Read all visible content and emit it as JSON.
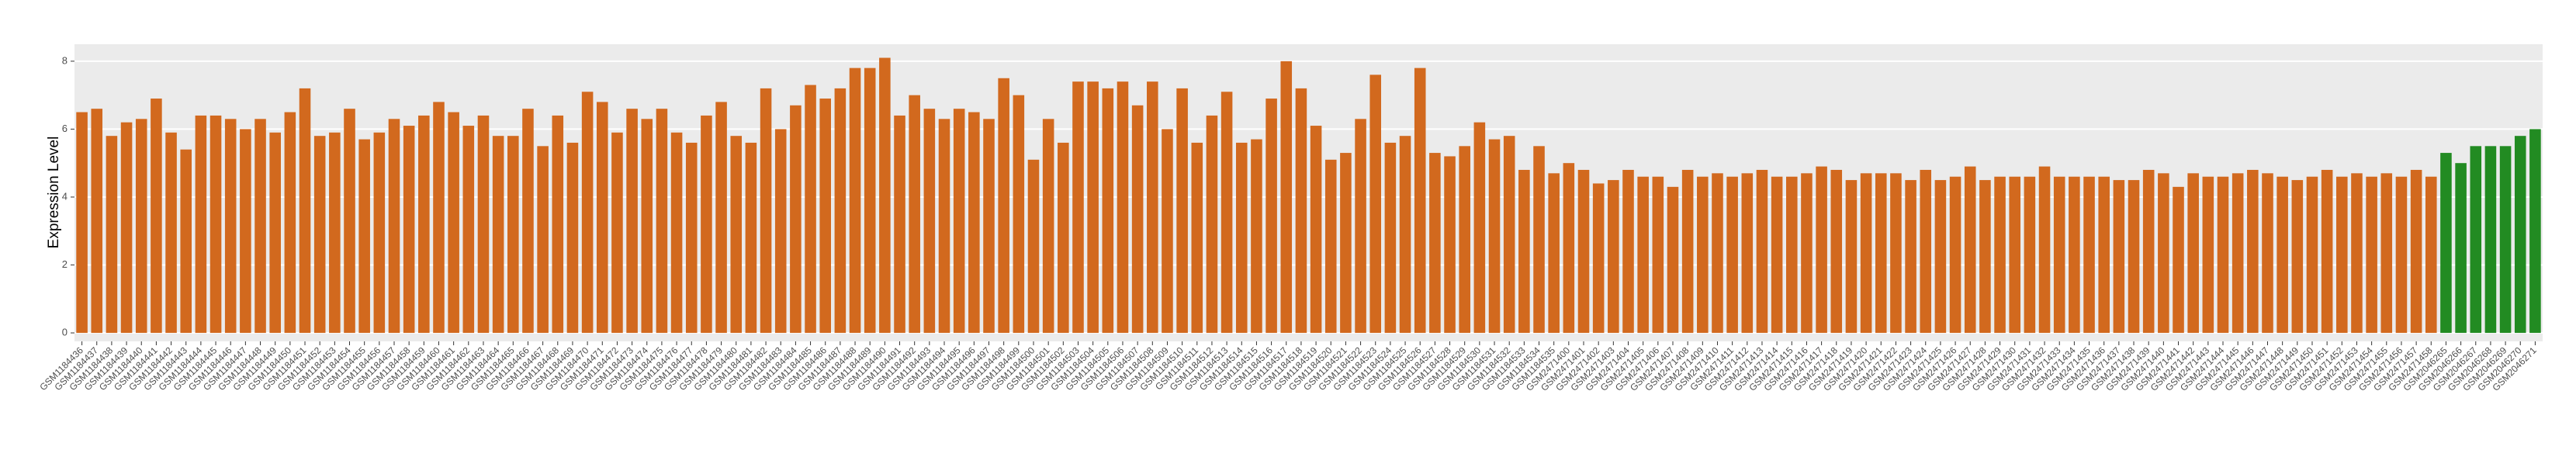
{
  "chart_data": {
    "type": "bar",
    "ylabel": "Expression Level",
    "ylim": [
      -0.25,
      8.5
    ],
    "yticks": [
      0,
      2,
      4,
      6,
      8
    ],
    "grid": true,
    "series": [
      {
        "color": "#d2691e",
        "categories": [
          "GSM1184436",
          "GSM1184437",
          "GSM1184438",
          "GSM1184439",
          "GSM1184440",
          "GSM1184441",
          "GSM1184442",
          "GSM1184443",
          "GSM1184444",
          "GSM1184445",
          "GSM1184446",
          "GSM1184447",
          "GSM1184448",
          "GSM1184449",
          "GSM1184450",
          "GSM1184451",
          "GSM1184452",
          "GSM1184453",
          "GSM1184454",
          "GSM1184455",
          "GSM1184456",
          "GSM1184457",
          "GSM1184458",
          "GSM1184459",
          "GSM1184460",
          "GSM1184461",
          "GSM1184462",
          "GSM1184463",
          "GSM1184464",
          "GSM1184465",
          "GSM1184466",
          "GSM1184467",
          "GSM1184468",
          "GSM1184469",
          "GSM1184470",
          "GSM1184471",
          "GSM1184472",
          "GSM1184473",
          "GSM1184474",
          "GSM1184475",
          "GSM1184476",
          "GSM1184477",
          "GSM1184478",
          "GSM1184479",
          "GSM1184480",
          "GSM1184481",
          "GSM1184482",
          "GSM1184483",
          "GSM1184484",
          "GSM1184485",
          "GSM1184486",
          "GSM1184487",
          "GSM1184488",
          "GSM1184489",
          "GSM1184490",
          "GSM1184491",
          "GSM1184492",
          "GSM1184493",
          "GSM1184494",
          "GSM1184495",
          "GSM1184496",
          "GSM1184497",
          "GSM1184498",
          "GSM1184499",
          "GSM1184500",
          "GSM1184501",
          "GSM1184502",
          "GSM1184503",
          "GSM1184504",
          "GSM1184505",
          "GSM1184506",
          "GSM1184507",
          "GSM1184508",
          "GSM1184509",
          "GSM1184510",
          "GSM1184511",
          "GSM1184512",
          "GSM1184513",
          "GSM1184514",
          "GSM1184515",
          "GSM1184516",
          "GSM1184517",
          "GSM1184518",
          "GSM1184519",
          "GSM1184520",
          "GSM1184521",
          "GSM1184522",
          "GSM1184523",
          "GSM1184524",
          "GSM1184525",
          "GSM1184526",
          "GSM1184527",
          "GSM1184528",
          "GSM1184529",
          "GSM1184530",
          "GSM1184531",
          "GSM1184532",
          "GSM1184533",
          "GSM1184534",
          "GSM1184535",
          "GSM2471400",
          "GSM2471401",
          "GSM2471402",
          "GSM2471403",
          "GSM2471404",
          "GSM2471405",
          "GSM2471406",
          "GSM2471407",
          "GSM2471408",
          "GSM2471409",
          "GSM2471410",
          "GSM2471411",
          "GSM2471412",
          "GSM2471413",
          "GSM2471414",
          "GSM2471415",
          "GSM2471416",
          "GSM2471417",
          "GSM2471418",
          "GSM2471419",
          "GSM2471420",
          "GSM2471421",
          "GSM2471422",
          "GSM2471423",
          "GSM2471424",
          "GSM2471425",
          "GSM2471426",
          "GSM2471427",
          "GSM2471428",
          "GSM2471429",
          "GSM2471430",
          "GSM2471431",
          "GSM2471432",
          "GSM2471433",
          "GSM2471434",
          "GSM2471435",
          "GSM2471436",
          "GSM2471437",
          "GSM2471438",
          "GSM2471439",
          "GSM2471440",
          "GSM2471441",
          "GSM2471442",
          "GSM2471443",
          "GSM2471444",
          "GSM2471445",
          "GSM2471446",
          "GSM2471447",
          "GSM2471448",
          "GSM2471449",
          "GSM2471450",
          "GSM2471451",
          "GSM2471452",
          "GSM2471453",
          "GSM2471454",
          "GSM2471455",
          "GSM2471456",
          "GSM2471457",
          "GSM2471458"
        ],
        "values": [
          6.5,
          6.6,
          5.8,
          6.2,
          6.3,
          6.9,
          5.9,
          5.4,
          6.4,
          6.4,
          6.3,
          6.0,
          6.3,
          5.9,
          6.5,
          7.2,
          5.8,
          5.9,
          6.6,
          5.7,
          5.9,
          6.3,
          6.1,
          6.4,
          6.8,
          6.5,
          6.1,
          6.4,
          5.8,
          5.8,
          6.6,
          5.5,
          6.4,
          5.6,
          7.1,
          6.8,
          5.9,
          6.6,
          6.3,
          6.6,
          5.9,
          5.6,
          6.4,
          6.8,
          5.8,
          5.6,
          7.2,
          6.0,
          6.7,
          7.3,
          6.9,
          7.2,
          7.8,
          7.8,
          8.1,
          6.4,
          7.0,
          6.6,
          6.3,
          6.6,
          6.5,
          6.3,
          7.5,
          7.0,
          5.1,
          6.3,
          5.6,
          7.4,
          7.4,
          7.2,
          7.4,
          6.7,
          7.4,
          6.0,
          7.2,
          5.6,
          6.4,
          7.1,
          5.6,
          5.7,
          6.9,
          8.0,
          7.2,
          6.1,
          5.1,
          5.3,
          6.3,
          7.6,
          5.6,
          5.8,
          7.8,
          5.3,
          5.2,
          5.5,
          6.2,
          5.7,
          5.8,
          4.8,
          5.5,
          4.7,
          5.0,
          4.8,
          4.4,
          4.5,
          4.8,
          4.6,
          4.6,
          4.3,
          4.8,
          4.6,
          4.7,
          4.6,
          4.7,
          4.8,
          4.6,
          4.6,
          4.7,
          4.9,
          4.8,
          4.5,
          4.7,
          4.7,
          4.7,
          4.5,
          4.8,
          4.5,
          4.6,
          4.9,
          4.5,
          4.6,
          4.6,
          4.6,
          4.9,
          4.6,
          4.6,
          4.6,
          4.6,
          4.5,
          4.5,
          4.8,
          4.7,
          4.3,
          4.7,
          4.6,
          4.6,
          4.7,
          4.8,
          4.7,
          4.6,
          4.5,
          4.6,
          4.8,
          4.6,
          4.7,
          4.6,
          4.7,
          4.6,
          4.8,
          4.6
        ]
      },
      {
        "color": "#228b22",
        "categories": [
          "GSM2046265",
          "GSM2046266",
          "GSM2046267",
          "GSM2046268",
          "GSM2046269",
          "GSM2046270",
          "GSM2046271"
        ],
        "values": [
          5.3,
          5.0,
          5.5,
          5.5,
          5.5,
          5.8,
          6.0
        ]
      }
    ]
  }
}
